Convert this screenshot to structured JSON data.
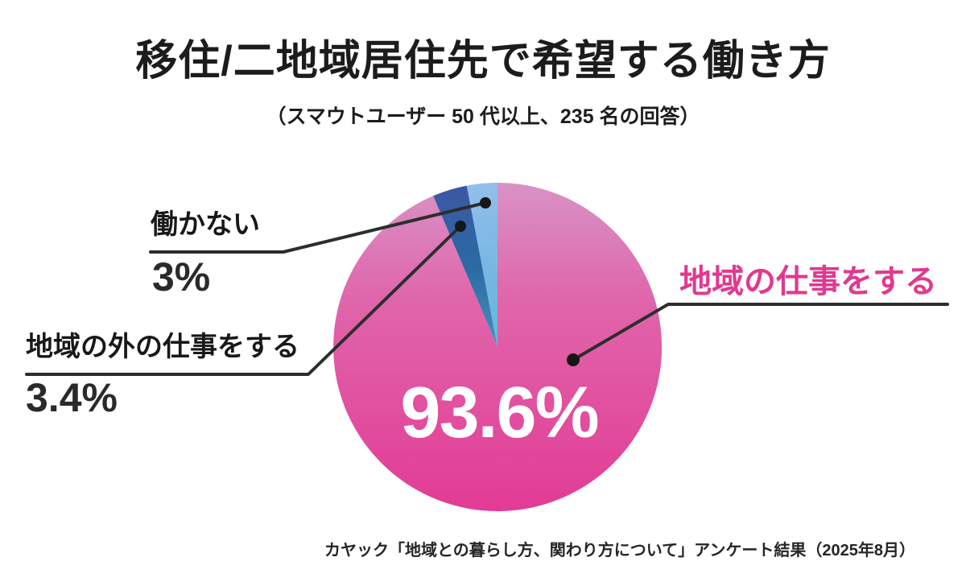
{
  "header": {
    "title": "移住/二地域居住先で希望する働き方",
    "subtitle": "（スマウトユーザー 50 代以上、235 名の回答）"
  },
  "callouts": {
    "no_work": {
      "label": "働かない",
      "value": "3%"
    },
    "outside_work": {
      "label": "地域の外の仕事をする",
      "value": "3.4%"
    },
    "local_work": {
      "label": "地域の仕事をする",
      "value": "93.6%",
      "label_color": "#e1398f"
    }
  },
  "footer": {
    "source": "カヤック「地域との暮らし方、関わり方について」アンケート結果（2025年8月）"
  },
  "colors": {
    "accent_pink": "#e33b95",
    "dark_blue": "#33529d",
    "light_blue": "#7db7e4",
    "line": "#2d2d2d",
    "dot": "#161616"
  },
  "chart_data": {
    "type": "pie",
    "title": "移住/二地域居住先で希望する働き方",
    "subtitle": "スマウトユーザー 50 代以上、235 名の回答",
    "source": "カヤック「地域との暮らし方、関わり方について」アンケート結果（2025年8月）",
    "start_angle_deg": 0,
    "direction": "clockwise",
    "legend_position": "callout-labels",
    "slices": [
      {
        "label": "地域の仕事をする",
        "value": 93.6,
        "display": "93.6%",
        "color": "#e33b95",
        "gradient": [
          [
            "0",
            "#d893c6"
          ],
          [
            "0.35",
            "#e066ab"
          ],
          [
            "1",
            "#e33b95"
          ]
        ]
      },
      {
        "label": "地域の外の仕事をする",
        "value": 3.4,
        "display": "3.4%",
        "color": "#33529d",
        "gradient": [
          [
            "0",
            "#3d57a3"
          ],
          [
            "0.5",
            "#2a6aa3"
          ],
          [
            "1",
            "#4a90bd"
          ]
        ]
      },
      {
        "label": "働かない",
        "value": 3.0,
        "display": "3%",
        "color": "#7db7e4",
        "gradient": [
          [
            "0",
            "#92bfe9"
          ],
          [
            "0.6",
            "#74b6e2"
          ],
          [
            "1",
            "#62b9dd"
          ]
        ]
      }
    ]
  }
}
